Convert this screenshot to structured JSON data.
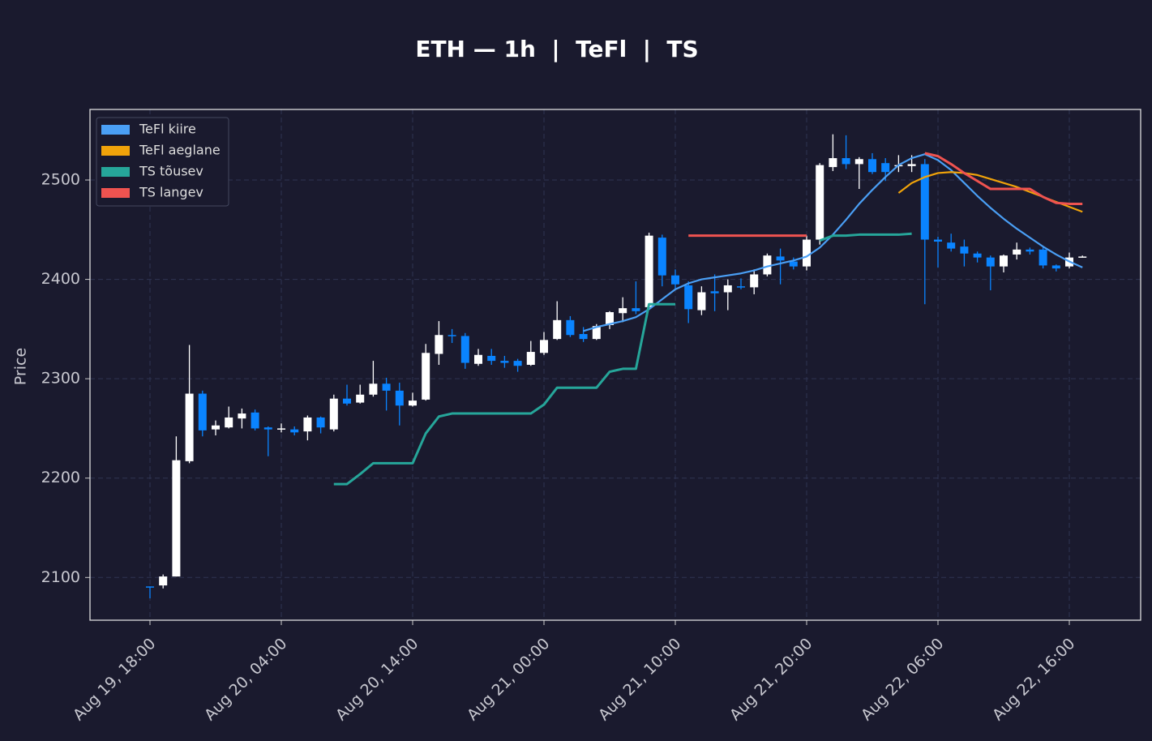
{
  "chart_data": {
    "type": "candlestick",
    "title": "ETH — 1h  |  TeFl  |  TS",
    "ylabel": "Price",
    "x": [
      "Aug 19, 18:00",
      "Aug 19, 19:00",
      "Aug 19, 20:00",
      "Aug 19, 21:00",
      "Aug 19, 22:00",
      "Aug 19, 23:00",
      "Aug 20, 00:00",
      "Aug 20, 01:00",
      "Aug 20, 02:00",
      "Aug 20, 03:00",
      "Aug 20, 04:00",
      "Aug 20, 05:00",
      "Aug 20, 06:00",
      "Aug 20, 07:00",
      "Aug 20, 08:00",
      "Aug 20, 09:00",
      "Aug 20, 10:00",
      "Aug 20, 11:00",
      "Aug 20, 12:00",
      "Aug 20, 13:00",
      "Aug 20, 14:00",
      "Aug 20, 15:00",
      "Aug 20, 16:00",
      "Aug 20, 17:00",
      "Aug 20, 18:00",
      "Aug 20, 19:00",
      "Aug 20, 20:00",
      "Aug 20, 21:00",
      "Aug 20, 22:00",
      "Aug 20, 23:00",
      "Aug 21, 00:00",
      "Aug 21, 01:00",
      "Aug 21, 02:00",
      "Aug 21, 03:00",
      "Aug 21, 04:00",
      "Aug 21, 05:00",
      "Aug 21, 06:00",
      "Aug 21, 07:00",
      "Aug 21, 08:00",
      "Aug 21, 09:00",
      "Aug 21, 10:00",
      "Aug 21, 11:00",
      "Aug 21, 12:00",
      "Aug 21, 13:00",
      "Aug 21, 14:00",
      "Aug 21, 15:00",
      "Aug 21, 16:00",
      "Aug 21, 17:00",
      "Aug 21, 18:00",
      "Aug 21, 19:00",
      "Aug 21, 20:00",
      "Aug 21, 21:00",
      "Aug 21, 22:00",
      "Aug 21, 23:00",
      "Aug 22, 00:00",
      "Aug 22, 01:00",
      "Aug 22, 02:00",
      "Aug 22, 03:00",
      "Aug 22, 04:00",
      "Aug 22, 05:00",
      "Aug 22, 06:00",
      "Aug 22, 07:00",
      "Aug 22, 08:00",
      "Aug 22, 09:00",
      "Aug 22, 10:00",
      "Aug 22, 11:00",
      "Aug 22, 12:00",
      "Aug 22, 13:00",
      "Aug 22, 14:00",
      "Aug 22, 15:00",
      "Aug 22, 16:00",
      "Aug 22, 17:00"
    ],
    "open": [
      2091,
      2092,
      2101,
      2217,
      2285,
      2249,
      2251,
      2260,
      2266,
      2251,
      2249,
      2249,
      2247,
      2261,
      2249,
      2280,
      2276,
      2284,
      2295,
      2288,
      2273,
      2279,
      2325,
      2344,
      2343,
      2315,
      2323,
      2318,
      2318,
      2314,
      2326,
      2340,
      2359,
      2345,
      2340,
      2354,
      2366,
      2371,
      2372,
      2442,
      2404,
      2394,
      2369,
      2388,
      2387,
      2393,
      2392,
      2405,
      2423,
      2418,
      2413,
      2440,
      2513,
      2522,
      2516,
      2521,
      2517,
      2515,
      2514,
      2516,
      2440,
      2437,
      2433,
      2426,
      2422,
      2413,
      2425,
      2430,
      2430,
      2414,
      2413,
      2422
    ],
    "high": [
      2091,
      2103,
      2242,
      2334,
      2288,
      2258,
      2272,
      2270,
      2269,
      2252,
      2255,
      2252,
      2263,
      2262,
      2284,
      2294,
      2294,
      2318,
      2301,
      2296,
      2286,
      2335,
      2358,
      2350,
      2346,
      2330,
      2330,
      2323,
      2320,
      2338,
      2347,
      2378,
      2363,
      2352,
      2355,
      2368,
      2382,
      2398,
      2447,
      2445,
      2410,
      2398,
      2393,
      2405,
      2400,
      2401,
      2410,
      2426,
      2431,
      2422,
      2444,
      2517,
      2546,
      2545,
      2523,
      2527,
      2522,
      2525,
      2525,
      2521,
      2443,
      2446,
      2440,
      2428,
      2424,
      2425,
      2437,
      2432,
      2432,
      2415,
      2427,
      2424
    ],
    "low": [
      2079,
      2089,
      2101,
      2215,
      2242,
      2243,
      2250,
      2250,
      2248,
      2222,
      2246,
      2243,
      2238,
      2245,
      2247,
      2273,
      2275,
      2282,
      2268,
      2253,
      2272,
      2278,
      2314,
      2336,
      2310,
      2313,
      2314,
      2311,
      2307,
      2313,
      2324,
      2339,
      2342,
      2337,
      2339,
      2350,
      2357,
      2365,
      2370,
      2393,
      2390,
      2356,
      2364,
      2368,
      2369,
      2390,
      2385,
      2403,
      2395,
      2410,
      2409,
      2435,
      2509,
      2511,
      2491,
      2506,
      2499,
      2508,
      2508,
      2375,
      2412,
      2428,
      2413,
      2417,
      2389,
      2407,
      2420,
      2425,
      2411,
      2408,
      2411,
      2422
    ],
    "close": [
      2090,
      2101,
      2218,
      2285,
      2248,
      2253,
      2261,
      2265,
      2250,
      2249,
      2250,
      2246,
      2261,
      2251,
      2280,
      2275,
      2284,
      2295,
      2288,
      2273,
      2278,
      2326,
      2344,
      2343,
      2316,
      2324,
      2318,
      2316,
      2313,
      2327,
      2339,
      2359,
      2344,
      2340,
      2353,
      2367,
      2371,
      2368,
      2444,
      2404,
      2395,
      2370,
      2387,
      2386,
      2394,
      2392,
      2405,
      2424,
      2419,
      2413,
      2440,
      2515,
      2522,
      2516,
      2521,
      2508,
      2508,
      2515,
      2516,
      2440,
      2438,
      2431,
      2426,
      2422,
      2413,
      2424,
      2430,
      2428,
      2414,
      2411,
      2422,
      2423
    ],
    "up_color": "#ffffff",
    "down_color": "#0a84ff",
    "series": [
      {
        "name": "TeFl kiire",
        "color": "#4a9ff5",
        "values": [
          null,
          null,
          null,
          null,
          null,
          null,
          null,
          null,
          null,
          null,
          null,
          null,
          null,
          null,
          null,
          null,
          null,
          null,
          null,
          null,
          null,
          null,
          null,
          null,
          null,
          null,
          null,
          null,
          null,
          null,
          null,
          null,
          null,
          2348,
          2352,
          2355,
          2358,
          2362,
          2370,
          2380,
          2390,
          2396,
          2400,
          2402,
          2404,
          2406,
          2409,
          2413,
          2416,
          2419,
          2423,
          2432,
          2445,
          2460,
          2476,
          2490,
          2503,
          2515,
          2522,
          2526,
          2520,
          2510,
          2497,
          2484,
          2472,
          2461,
          2451,
          2442,
          2433,
          2425,
          2418,
          2412
        ]
      },
      {
        "name": "TeFl aeglane",
        "color": "#f0a30a",
        "values": [
          null,
          null,
          null,
          null,
          null,
          null,
          null,
          null,
          null,
          null,
          null,
          null,
          null,
          null,
          null,
          null,
          null,
          null,
          null,
          null,
          null,
          null,
          null,
          null,
          null,
          null,
          null,
          null,
          null,
          null,
          null,
          null,
          null,
          null,
          null,
          null,
          null,
          null,
          null,
          null,
          null,
          null,
          null,
          null,
          null,
          null,
          null,
          null,
          null,
          null,
          null,
          null,
          null,
          null,
          null,
          null,
          null,
          2487,
          2497,
          2503,
          2507,
          2508,
          2507,
          2505,
          2501,
          2497,
          2493,
          2488,
          2483,
          2478,
          2473,
          2468
        ]
      },
      {
        "name": "TS tõusev",
        "color": "#26a69a",
        "values": [
          null,
          null,
          null,
          null,
          null,
          null,
          null,
          null,
          null,
          null,
          null,
          null,
          null,
          null,
          2194,
          2194,
          2204,
          2215,
          2215,
          2215,
          2215,
          2245,
          2262,
          2265,
          2265,
          2265,
          2265,
          2265,
          2265,
          2265,
          2274,
          2291,
          2291,
          2291,
          2291,
          2307,
          2310,
          2310,
          2375,
          2375,
          2375,
          null,
          null,
          null,
          null,
          null,
          null,
          null,
          null,
          null,
          null,
          2439,
          2444,
          2444,
          2445,
          2445,
          2445,
          2445,
          2446,
          null,
          null,
          null,
          null,
          null,
          null,
          null,
          null,
          null,
          null,
          null,
          null,
          null
        ]
      },
      {
        "name": "TS langev",
        "color": "#ef5350",
        "values": [
          null,
          null,
          null,
          null,
          null,
          null,
          null,
          null,
          null,
          null,
          null,
          null,
          null,
          null,
          null,
          null,
          null,
          null,
          null,
          null,
          null,
          null,
          null,
          null,
          null,
          null,
          null,
          null,
          null,
          null,
          null,
          null,
          null,
          null,
          null,
          null,
          null,
          null,
          null,
          null,
          null,
          2444,
          2444,
          2444,
          2444,
          2444,
          2444,
          2444,
          2444,
          2444,
          2444,
          null,
          null,
          null,
          null,
          null,
          null,
          null,
          null,
          2527,
          2524,
          2516,
          2507,
          2499,
          2491,
          2491,
          2491,
          2491,
          2483,
          2477,
          2476,
          2476
        ]
      }
    ],
    "ylim": [
      2057,
      2571
    ],
    "yticks": [
      2100,
      2200,
      2300,
      2400,
      2500
    ],
    "xticks": [
      "Aug 19, 18:00",
      "Aug 20, 04:00",
      "Aug 20, 14:00",
      "Aug 21, 00:00",
      "Aug 21, 10:00",
      "Aug 21, 20:00",
      "Aug 22, 06:00",
      "Aug 22, 16:00"
    ],
    "grid": true,
    "legend": "upper left"
  }
}
